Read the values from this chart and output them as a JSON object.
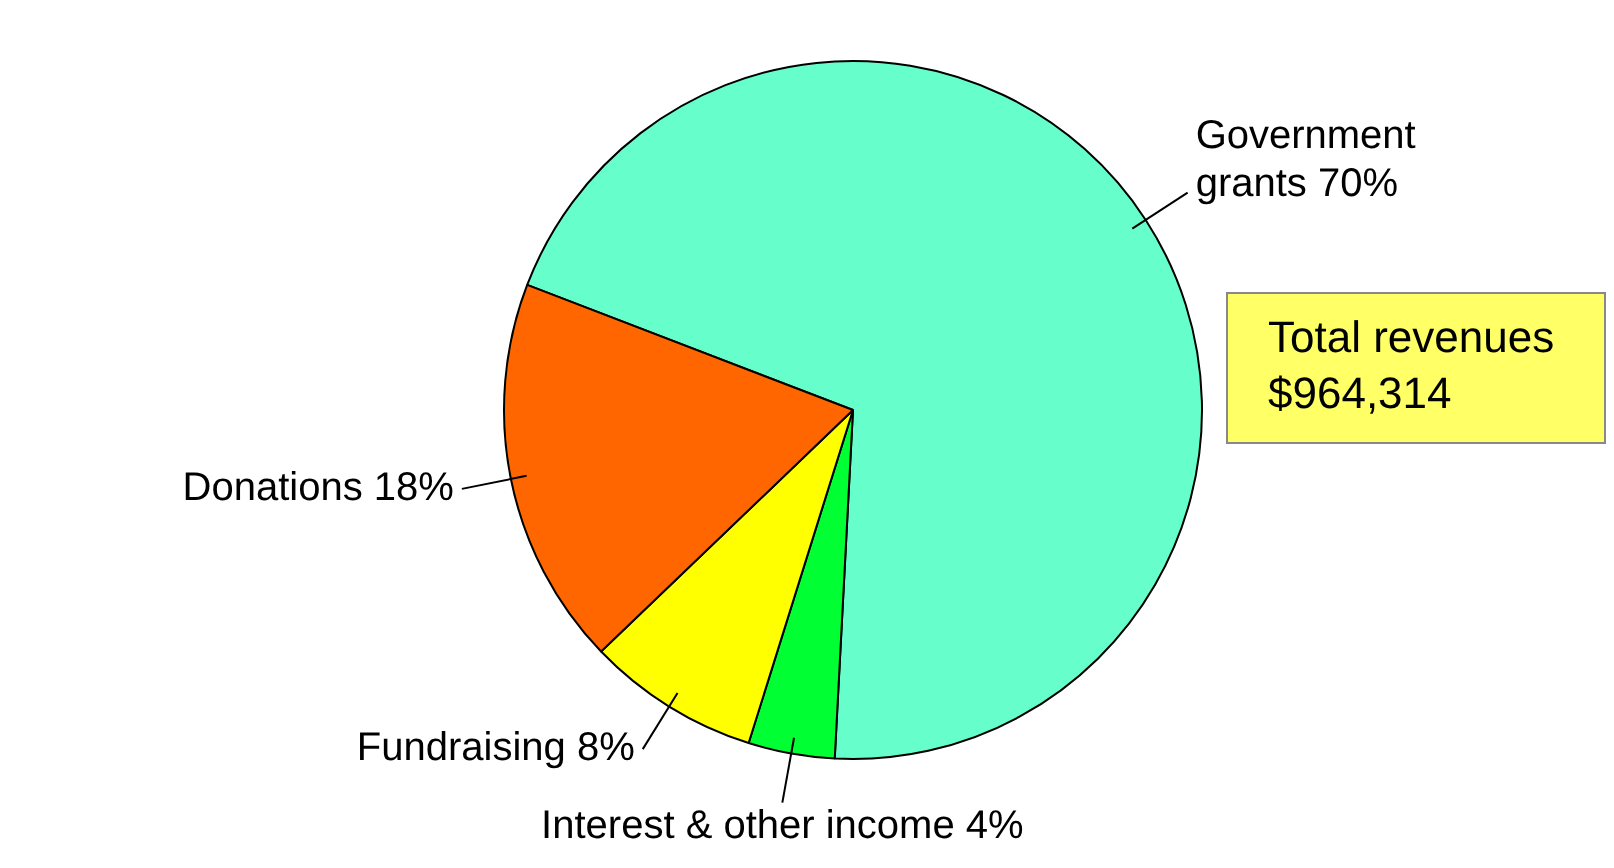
{
  "chart_data": {
    "type": "pie",
    "categories": [
      "Government grants",
      "Interest & other income",
      "Fundraising",
      "Donations"
    ],
    "values": [
      70,
      4,
      8,
      18
    ],
    "value_labels": [
      "70%",
      "4%",
      "8%",
      "18%"
    ],
    "colors": [
      "#66ffcc",
      "#00ff33",
      "#ffff00",
      "#ff6600"
    ],
    "legend": false,
    "annotations": [
      "Total revenues\n$964,314"
    ]
  }
}
